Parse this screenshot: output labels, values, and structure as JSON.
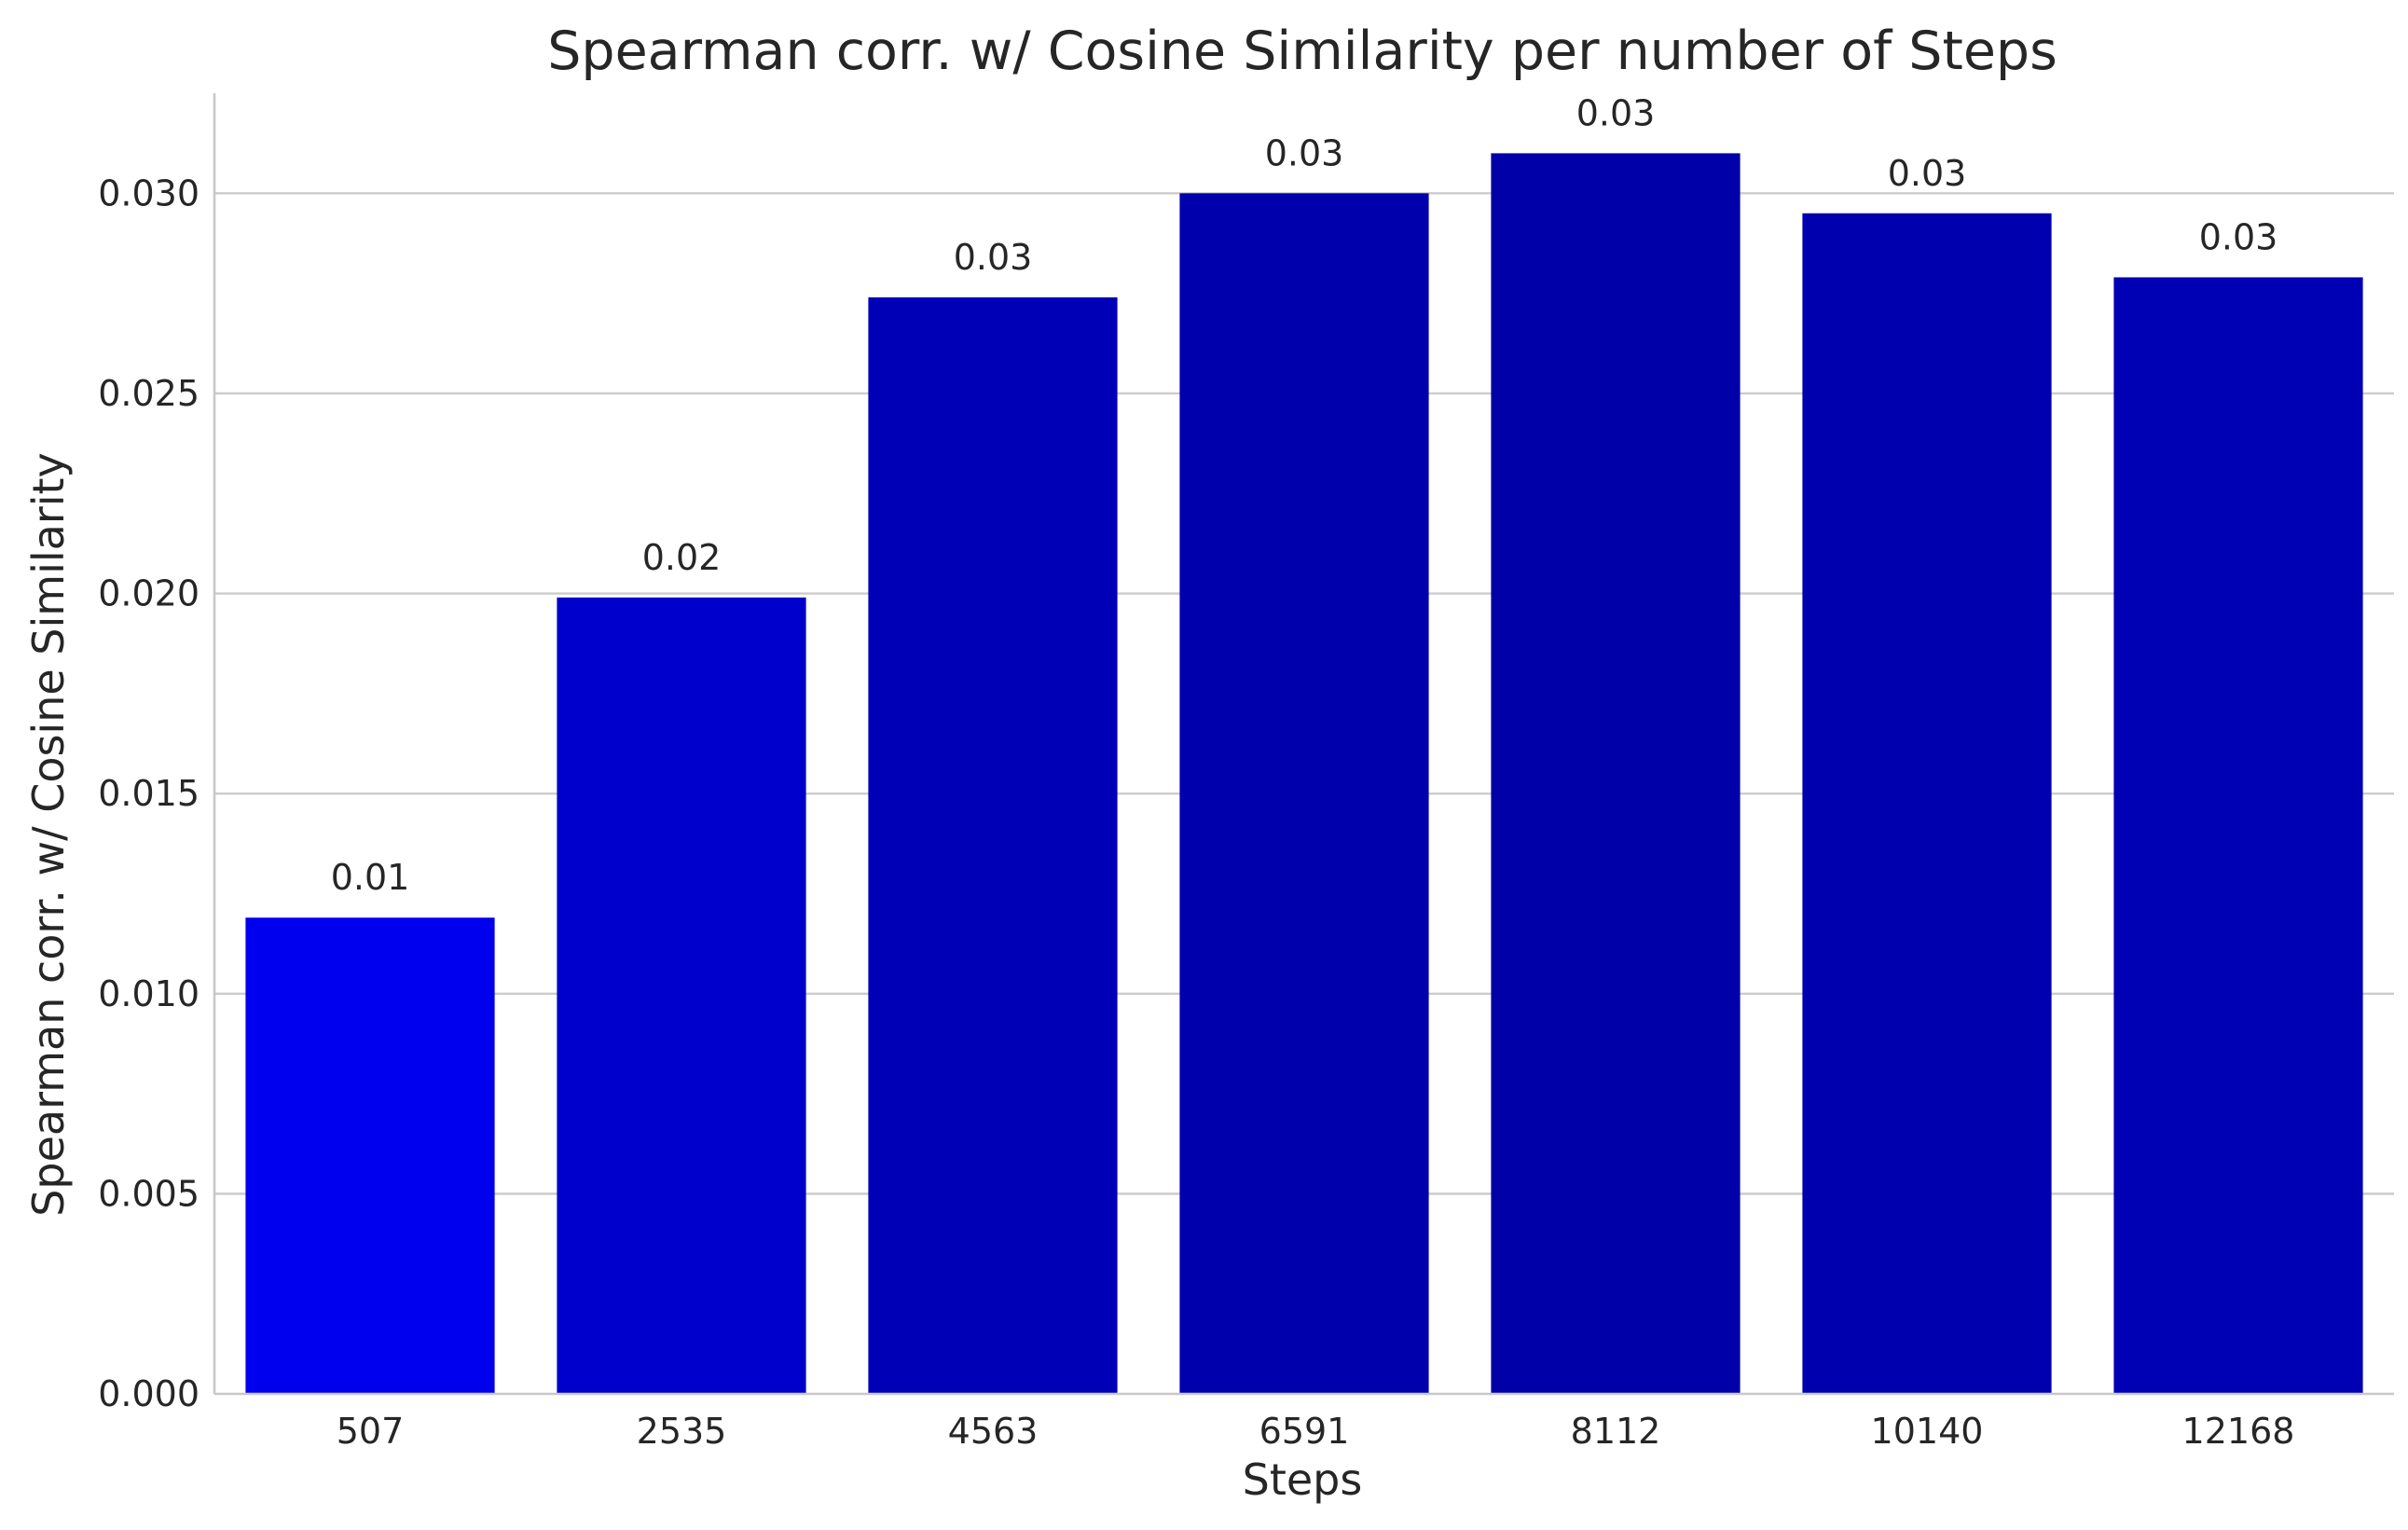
{
  "chart_data": {
    "type": "bar",
    "title": "Spearman corr. w/ Cosine Similarity per number of Steps",
    "xlabel": "Steps",
    "ylabel": "Spearman corr. w/ Cosine Similarity",
    "categories": [
      "507",
      "2535",
      "4563",
      "6591",
      "8112",
      "10140",
      "12168"
    ],
    "values": [
      0.0119,
      0.0199,
      0.0274,
      0.03,
      0.031,
      0.0295,
      0.0279
    ],
    "data_labels": [
      "0.01",
      "0.02",
      "0.03",
      "0.03",
      "0.03",
      "0.03",
      "0.03"
    ],
    "ylim": [
      0,
      0.0325
    ],
    "yticks": [
      0.0,
      0.005,
      0.01,
      0.015,
      0.02,
      0.025,
      0.03
    ],
    "ytick_labels": [
      "0.000",
      "0.005",
      "0.010",
      "0.015",
      "0.020",
      "0.025",
      "0.030"
    ],
    "grid": "horizontal",
    "legend": "none",
    "bar_colors": [
      "#0000ef",
      "#0000cc",
      "#0000b6",
      "#0000ad",
      "#0000a9",
      "#0000ae",
      "#0000b4"
    ],
    "grid_color": "#cccccc",
    "axis_color": "#c8c8c8"
  }
}
